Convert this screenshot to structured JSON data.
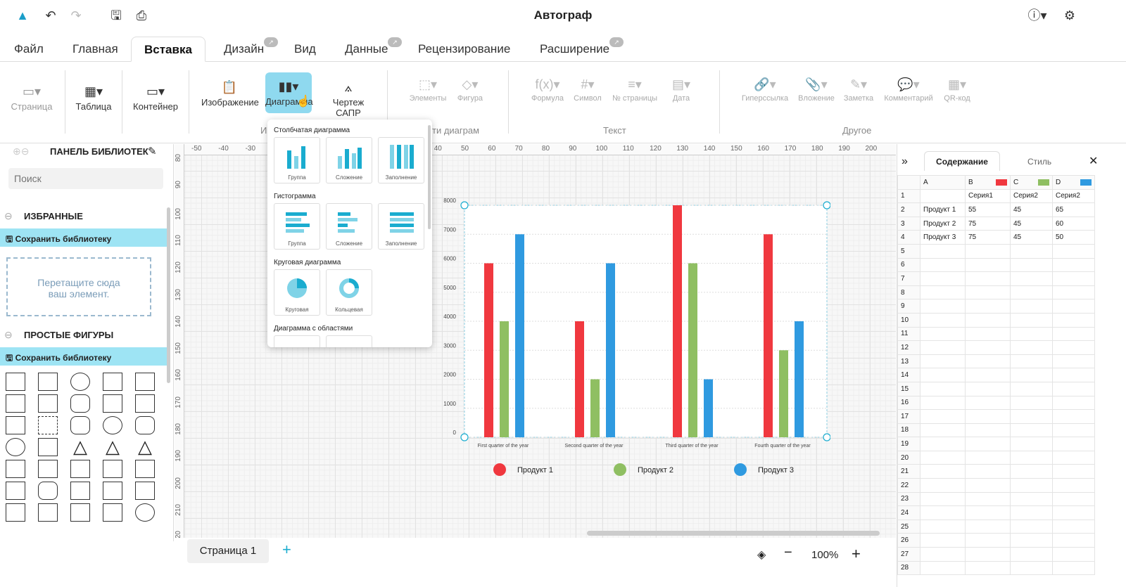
{
  "app": {
    "title": "Автограф"
  },
  "tabs": [
    {
      "label": "Файл"
    },
    {
      "label": "Главная"
    },
    {
      "label": "Вставка"
    },
    {
      "label": "Дизайн"
    },
    {
      "label": "Вид"
    },
    {
      "label": "Данные"
    },
    {
      "label": "Рецензирование"
    },
    {
      "label": "Расширение"
    }
  ],
  "ribbon": {
    "page": "Страница",
    "table": "Таблица",
    "container": "Контейнер",
    "image": "Изображение",
    "chart": "Диаграмма",
    "cad": "Чертеж САПР",
    "elements": "Элементы",
    "figure": "Фигура",
    "formula": "Формула",
    "symbol": "Символ",
    "page_number": "№ страницы",
    "date": "Дата",
    "hyperlink": "Гиперссылка",
    "attachment": "Вложение",
    "note": "Заметка",
    "comment": "Комментарий",
    "qr": "QR-код",
    "group_insert": "И",
    "group_diagram": "ти диаграм",
    "group_text": "Текст",
    "group_other": "Другое"
  },
  "dropdown": {
    "sec_bar": "Столбчатая диаграмма",
    "bar_group": "Группа",
    "bar_stack": "Сложение",
    "bar_fill": "Заполнение",
    "sec_hist": "Гистограмма",
    "hist_group": "Группа",
    "hist_stack": "Сложение",
    "hist_fill": "Заполнение",
    "sec_pie": "Круговая диаграмма",
    "pie": "Круговая",
    "donut": "Кольцевая",
    "sec_area": "Диаграмма с областями"
  },
  "library": {
    "header": "ПАНЕЛЬ БИБЛИОТЕК",
    "search_placeholder": "Поиск",
    "favorites": "ИЗБРАННЫЕ",
    "save": "Сохранить библиотеку",
    "drop_hint": "Перетащите сюда ваш элемент.",
    "simple": "ПРОСТЫЕ ФИГУРЫ",
    "save2": "Сохранить библиотеку"
  },
  "bottom": {
    "page_tab": "Страница 1",
    "zoom": "100%"
  },
  "sheet": {
    "tab_content": "Содержание",
    "tab_style": "Стиль",
    "cols": [
      "A",
      "B",
      "C",
      "D"
    ],
    "col_colors": [
      "#f0383f",
      "#8fbf62",
      "#2f9ae0"
    ],
    "rows": [
      [
        "",
        "Серия1",
        "Серия2",
        "Серия2"
      ],
      [
        "Продукт 1",
        "55",
        "45",
        "65"
      ],
      [
        "Продукт 2",
        "75",
        "45",
        "60"
      ],
      [
        "Продукт 3",
        "75",
        "45",
        "50"
      ]
    ]
  },
  "chart_data": {
    "type": "bar",
    "categories": [
      "First quarter of the year",
      "Second quarter of the year",
      "Third quarter of the year",
      "Fourth quarter of the year"
    ],
    "series": [
      {
        "name": "Продукт 1",
        "color": "#f0383f",
        "values": [
          6000,
          4000,
          8000,
          7000
        ]
      },
      {
        "name": "Продукт 2",
        "color": "#8fbf62",
        "values": [
          4000,
          2000,
          6000,
          3000
        ]
      },
      {
        "name": "Продукт 3",
        "color": "#2f9ae0",
        "values": [
          7000,
          6000,
          2000,
          4000
        ]
      }
    ],
    "yticks": [
      0,
      1000,
      2000,
      3000,
      4000,
      5000,
      6000,
      7000,
      8000
    ],
    "ylim": [
      0,
      8000
    ],
    "legend": "bottom"
  }
}
